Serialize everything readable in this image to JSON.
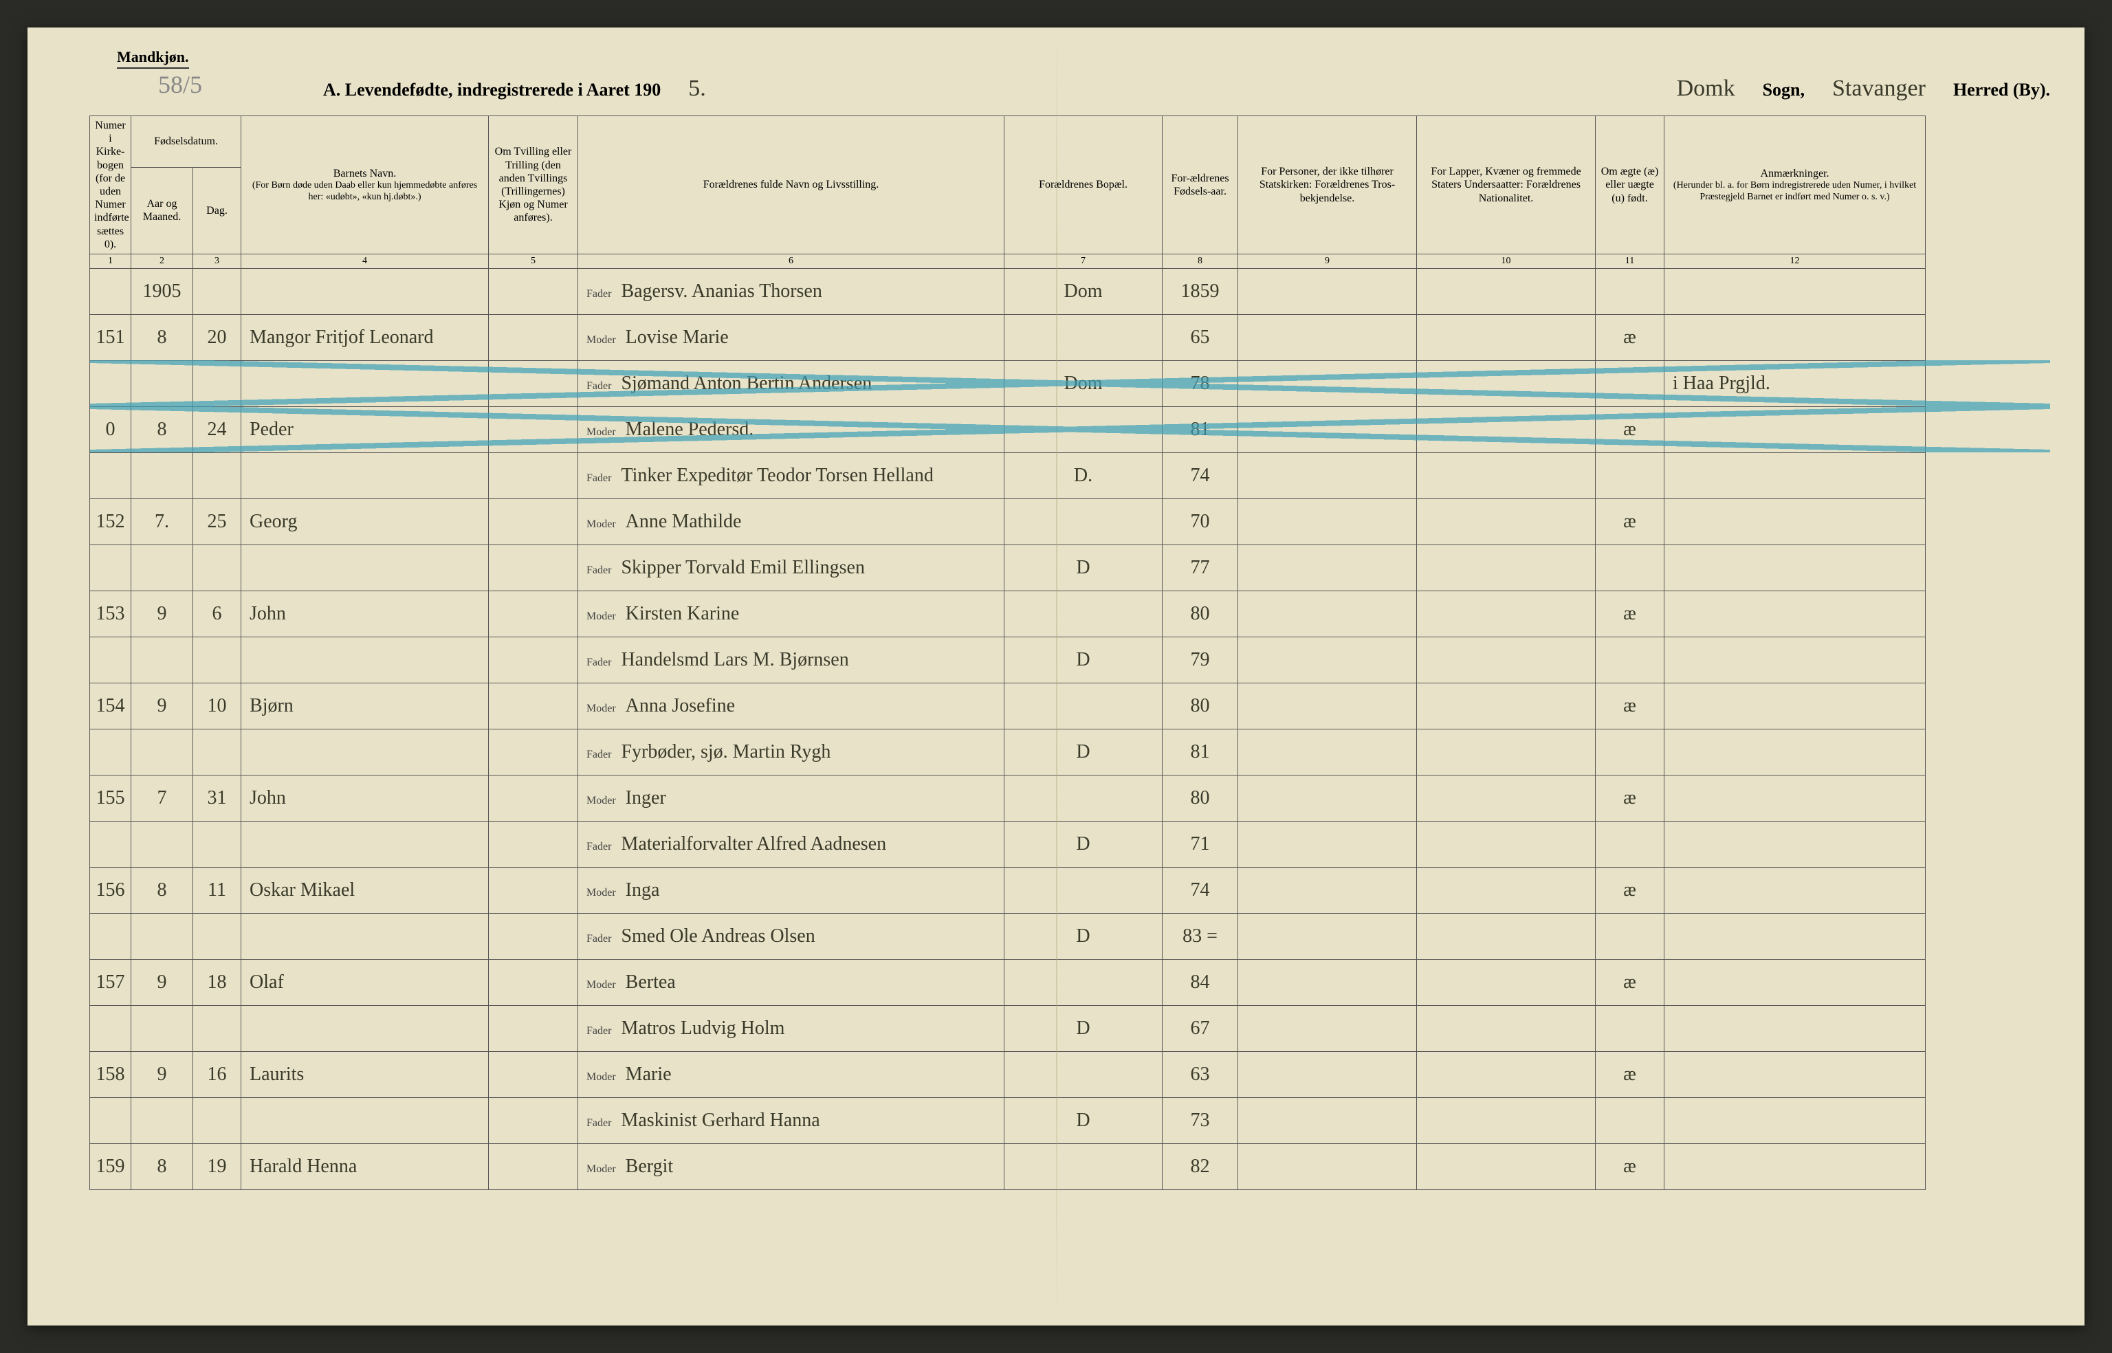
{
  "header": {
    "gender_label": "Mandkjøn.",
    "pencil_note": "58/5",
    "title_prefix": "A.  Levendefødte, indregistrerede i Aaret 190",
    "year_suffix": "5.",
    "sogn_value": "Domk",
    "sogn_label": "Sogn,",
    "herred_value": "Stavanger",
    "herred_label": "Herred (By)."
  },
  "columns": {
    "c1": "Numer i Kirke-bogen (for de uden Numer indførte sættes 0).",
    "c2_top": "Fødselsdatum.",
    "c2a": "Aar og Maaned.",
    "c2b": "Dag.",
    "c4_top": "Barnets Navn.",
    "c4_sub": "(For Børn døde uden Daab eller kun hjemmedøbte anføres her: «udøbt», «kun hj.døbt».)",
    "c5": "Om Tvilling eller Trilling (den anden Tvillings (Trillingernes) Kjøn og Numer anføres).",
    "c6": "Forældrenes fulde Navn og Livsstilling.",
    "c7": "Forældrenes Bopæl.",
    "c8": "For-ældrenes Fødsels-aar.",
    "c9": "For Personer, der ikke tilhører Statskirken: Forældrenes Tros-bekjendelse.",
    "c10": "For Lapper, Kvæner og fremmede Staters Undersaatter: Forældrenes Nationalitet.",
    "c11": "Om ægte (æ) eller uægte (u) født.",
    "c12_top": "Anmærkninger.",
    "c12_sub": "(Herunder bl. a. for Børn indregistrerede uden Numer, i hvilket Præstegjeld Barnet er indført med Numer o. s. v.)"
  },
  "colnums": [
    "1",
    "2",
    "3",
    "4",
    "5",
    "6",
    "7",
    "8",
    "9",
    "10",
    "11",
    "12"
  ],
  "labels": {
    "fader": "Fader",
    "moder": "Moder"
  },
  "rows": [
    {
      "num": "",
      "year_month": "1905",
      "day": "",
      "child": "",
      "father": "Bagersv. Ananias Thorsen",
      "mother": "",
      "bopael": "Dom",
      "fyear": "1859",
      "legit": "",
      "note": "",
      "struck": false
    },
    {
      "num": "151",
      "year_month": "8",
      "day": "20",
      "child": "Mangor Fritjof Leonard",
      "father": "",
      "mother": "Lovise Marie",
      "bopael": "",
      "fyear": "65",
      "legit": "æ",
      "note": "",
      "struck": false
    },
    {
      "num": "",
      "year_month": "",
      "day": "",
      "child": "",
      "father": "Sjømand Anton Bertin Andersen",
      "mother": "",
      "bopael": "Dom",
      "fyear": "78",
      "legit": "",
      "note": "i Haa Prgjld.",
      "struck": true
    },
    {
      "num": "0",
      "year_month": "8",
      "day": "24",
      "child": "Peder",
      "father": "",
      "mother": "Malene Pedersd.",
      "bopael": "",
      "fyear": "81",
      "legit": "æ",
      "note": "",
      "struck": true
    },
    {
      "num": "",
      "year_month": "",
      "day": "",
      "child": "",
      "father": "Tinker Expeditør Teodor Torsen Helland",
      "mother": "",
      "bopael": "D.",
      "fyear": "74",
      "legit": "",
      "note": "",
      "struck": false
    },
    {
      "num": "152",
      "year_month": "7.",
      "day": "25",
      "child": "Georg",
      "father": "",
      "mother": "Anne Mathilde",
      "bopael": "",
      "fyear": "70",
      "legit": "æ",
      "note": "",
      "struck": false
    },
    {
      "num": "",
      "year_month": "",
      "day": "",
      "child": "",
      "father": "Skipper Torvald Emil Ellingsen",
      "mother": "",
      "bopael": "D",
      "fyear": "77",
      "legit": "",
      "note": "",
      "struck": false
    },
    {
      "num": "153",
      "year_month": "9",
      "day": "6",
      "child": "John",
      "father": "",
      "mother": "Kirsten Karine",
      "bopael": "",
      "fyear": "80",
      "legit": "æ",
      "note": "",
      "struck": false
    },
    {
      "num": "",
      "year_month": "",
      "day": "",
      "child": "",
      "father": "Handelsmd Lars M. Bjørnsen",
      "mother": "",
      "bopael": "D",
      "fyear": "79",
      "legit": "",
      "note": "",
      "struck": false
    },
    {
      "num": "154",
      "year_month": "9",
      "day": "10",
      "child": "Bjørn",
      "father": "",
      "mother": "Anna Josefine",
      "bopael": "",
      "fyear": "80",
      "legit": "æ",
      "note": "",
      "struck": false
    },
    {
      "num": "",
      "year_month": "",
      "day": "",
      "child": "",
      "father": "Fyrbøder, sjø. Martin Rygh",
      "mother": "",
      "bopael": "D",
      "fyear": "81",
      "legit": "",
      "note": "",
      "struck": false
    },
    {
      "num": "155",
      "year_month": "7",
      "day": "31",
      "child": "John",
      "father": "",
      "mother": "Inger",
      "bopael": "",
      "fyear": "80",
      "legit": "æ",
      "note": "",
      "struck": false
    },
    {
      "num": "",
      "year_month": "",
      "day": "",
      "child": "",
      "father": "Materialforvalter Alfred Aadnesen",
      "mother": "",
      "bopael": "D",
      "fyear": "71",
      "legit": "",
      "note": "",
      "struck": false
    },
    {
      "num": "156",
      "year_month": "8",
      "day": "11",
      "child": "Oskar Mikael",
      "father": "",
      "mother": "Inga",
      "bopael": "",
      "fyear": "74",
      "legit": "æ",
      "note": "",
      "struck": false
    },
    {
      "num": "",
      "year_month": "",
      "day": "",
      "child": "",
      "father": "Smed Ole Andreas Olsen",
      "mother": "",
      "bopael": "D",
      "fyear": "83 =",
      "legit": "",
      "note": "",
      "struck": false
    },
    {
      "num": "157",
      "year_month": "9",
      "day": "18",
      "child": "Olaf",
      "father": "",
      "mother": "Bertea",
      "bopael": "",
      "fyear": "84",
      "legit": "æ",
      "note": "",
      "struck": false
    },
    {
      "num": "",
      "year_month": "",
      "day": "",
      "child": "",
      "father": "Matros Ludvig Holm",
      "mother": "",
      "bopael": "D",
      "fyear": "67",
      "legit": "",
      "note": "",
      "struck": false
    },
    {
      "num": "158",
      "year_month": "9",
      "day": "16",
      "child": "Laurits",
      "father": "",
      "mother": "Marie",
      "bopael": "",
      "fyear": "63",
      "legit": "æ",
      "note": "",
      "struck": false
    },
    {
      "num": "",
      "year_month": "",
      "day": "",
      "child": "",
      "father": "Maskinist Gerhard Hanna",
      "mother": "",
      "bopael": "D",
      "fyear": "73",
      "legit": "",
      "note": "",
      "struck": false
    },
    {
      "num": "159",
      "year_month": "8",
      "day": "19",
      "child": "Harald Henna",
      "father": "",
      "mother": "Bergit",
      "bopael": "",
      "fyear": "82",
      "legit": "æ",
      "note": "",
      "struck": false
    }
  ],
  "widths": {
    "c1": "60px",
    "c2a": "90px",
    "c2b": "70px",
    "c4": "360px",
    "c5": "130px",
    "c6": "620px",
    "c7": "230px",
    "c8": "110px",
    "c9": "260px",
    "c10": "260px",
    "c11": "100px",
    "c12": "380px"
  }
}
